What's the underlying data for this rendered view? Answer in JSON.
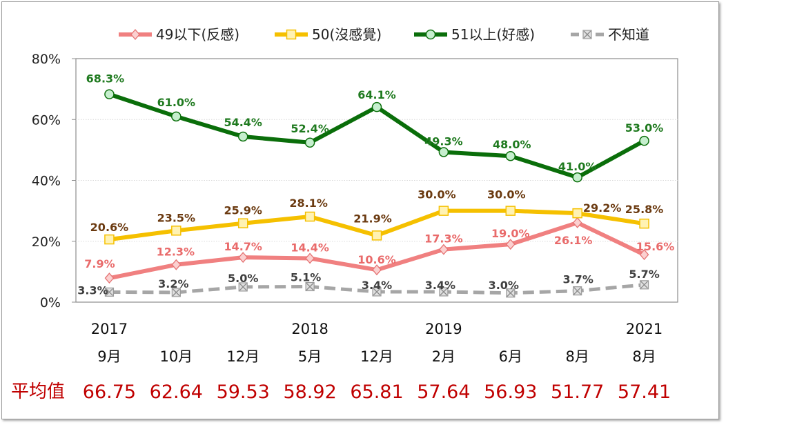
{
  "chart_data": {
    "type": "line",
    "categories": [
      {
        "year": "2017",
        "month": "9月"
      },
      {
        "year": "",
        "month": "10月"
      },
      {
        "year": "",
        "month": "12月"
      },
      {
        "year": "2018",
        "month": "5月"
      },
      {
        "year": "",
        "month": "12月"
      },
      {
        "year": "2019",
        "month": "2月"
      },
      {
        "year": "",
        "month": "6月"
      },
      {
        "year": "",
        "month": "8月"
      },
      {
        "year": "2021",
        "month": "8月"
      }
    ],
    "ylim": [
      0,
      80
    ],
    "yticks": [
      "0%",
      "20%",
      "40%",
      "60%",
      "80%"
    ],
    "grid": true,
    "legend_position": "top",
    "series": [
      {
        "name": "49以下(反感)",
        "color": "#f08080",
        "marker": "diamond",
        "dashed": false,
        "values": [
          7.9,
          12.3,
          14.7,
          14.4,
          10.6,
          17.3,
          19.0,
          26.1,
          15.6
        ],
        "labels": [
          "7.9%",
          "12.3%",
          "14.7%",
          "14.4%",
          "10.6%",
          "17.3%",
          "19.0%",
          "26.1%",
          "15.6%"
        ],
        "label_color": "#e96a6a"
      },
      {
        "name": "50(沒感覺)",
        "color": "#f5c000",
        "marker": "square",
        "dashed": false,
        "values": [
          20.6,
          23.5,
          25.9,
          28.1,
          21.9,
          30.0,
          30.0,
          29.2,
          25.8
        ],
        "labels": [
          "20.6%",
          "23.5%",
          "25.9%",
          "28.1%",
          "21.9%",
          "30.0%",
          "30.0%",
          "29.2%",
          "25.8%"
        ],
        "label_color": "#6b3a10"
      },
      {
        "name": "51以上(好感)",
        "color": "#0a6e0a",
        "marker": "circle",
        "dashed": false,
        "values": [
          68.3,
          61.0,
          54.4,
          52.4,
          64.1,
          49.3,
          48.0,
          41.0,
          53.0
        ],
        "labels": [
          "68.3%",
          "61.0%",
          "54.4%",
          "52.4%",
          "64.1%",
          "49.3%",
          "48.0%",
          "41.0%",
          "53.0%"
        ],
        "label_color": "#1f7a1f"
      },
      {
        "name": "不知道",
        "color": "#a6a6a6",
        "marker": "xbox",
        "dashed": true,
        "values": [
          3.3,
          3.2,
          5.0,
          5.1,
          3.4,
          3.4,
          3.0,
          3.7,
          5.7
        ],
        "labels": [
          "3.3%",
          "3.2%",
          "5.0%",
          "5.1%",
          "3.4%",
          "3.4%",
          "3.0%",
          "3.7%",
          "5.7%"
        ],
        "label_color": "#404040"
      }
    ],
    "average": {
      "title": "平均值",
      "values": [
        "66.75",
        "62.64",
        "59.53",
        "58.92",
        "65.81",
        "57.64",
        "56.93",
        "51.77",
        "57.41"
      ]
    }
  }
}
